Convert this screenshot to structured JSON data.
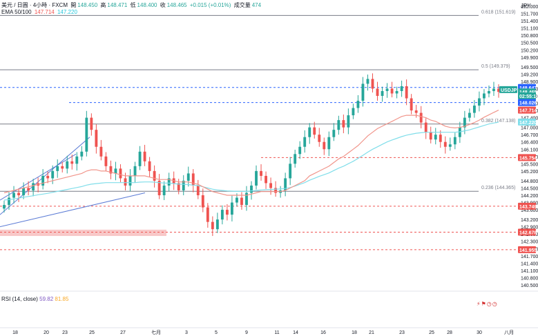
{
  "header": {
    "symbol": "美元 / 日圓 · 4小時 · FXCM",
    "open_label": "開",
    "open": "148.450",
    "high_label": "高",
    "high": "148.471",
    "low_label": "低",
    "low": "148.400",
    "close_label": "收",
    "close": "148.465",
    "change": "+0.015 (+0.01%)",
    "volume_label": "成交量",
    "volume": "474",
    "ema_label": "EMA 50/100",
    "ema50": "147.714",
    "ema100": "147.220"
  },
  "rsi": {
    "label": "RSI (14, close)",
    "value1": "59.82",
    "value2": "81.85"
  },
  "axis": {
    "unit": "JPY"
  },
  "icons": [
    "alert-icon",
    "flag-icon",
    "clock-icon",
    "clock-icon"
  ],
  "colors": {
    "up": "#26a69a",
    "down": "#ef5350",
    "ema50": "#f1948a",
    "ema100": "#80deea",
    "fib": "#787b86",
    "dashed_red": "#ef5350",
    "dashed_blue": "#2962ff",
    "trend": "#5b7bd5",
    "zone": "#f8c8c8"
  },
  "chart_data": {
    "type": "candlestick",
    "title": "USDJPY 4H",
    "ylim": [
      140.3,
      152.2
    ],
    "y_ticks": [
      "152.000",
      "151.700",
      "151.400",
      "151.100",
      "150.800",
      "150.500",
      "150.200",
      "149.900",
      "149.500",
      "149.200",
      "148.900",
      "148.600",
      "148.300",
      "148.000",
      "147.700",
      "147.400",
      "147.000",
      "146.700",
      "146.400",
      "146.100",
      "145.800",
      "145.500",
      "145.200",
      "144.800",
      "144.500",
      "144.200",
      "143.900",
      "143.600",
      "143.200",
      "142.900",
      "142.600",
      "142.300",
      "142.000",
      "141.700",
      "141.400",
      "141.100",
      "140.800",
      "140.500"
    ],
    "x_ticks": [
      "18",
      "20",
      "23",
      "25",
      "27",
      "七月",
      "3",
      "5",
      "9",
      "11",
      "14",
      "16",
      "18",
      "21",
      "23",
      "25",
      "28",
      "30",
      "八月"
    ],
    "fib_levels": [
      {
        "label": "0.618 (151.619)",
        "value": 151.619
      },
      {
        "label": "0.5 (149.379)",
        "value": 149.379
      },
      {
        "label": "0.382 (147.138)",
        "value": 147.138
      },
      {
        "label": "0.236 (144.365)",
        "value": 144.365
      }
    ],
    "red_dashed_levels": [
      145.754,
      143.749,
      142.678,
      141.955
    ],
    "blue_dashed_levels": [
      148.647,
      148.026
    ],
    "price_tags": [
      {
        "text": "USDJPY",
        "value": 148.56,
        "color": "#26a69a",
        "kind": "symbol"
      },
      {
        "text": "148.647",
        "value": 148.647,
        "color": "#2962ff"
      },
      {
        "text": "148.465",
        "value": 148.465,
        "color": "#26a69a"
      },
      {
        "text": "02:55:10",
        "value": 148.3,
        "color": "#26a69a"
      },
      {
        "text": "148.026",
        "value": 148.026,
        "color": "#2962ff"
      },
      {
        "text": "147.714",
        "value": 147.714,
        "color": "#ef5350"
      },
      {
        "text": "147.220",
        "value": 147.22,
        "color": "#80deea"
      },
      {
        "text": "145.754",
        "value": 145.754,
        "color": "#ef5350"
      },
      {
        "text": "143.749",
        "value": 143.749,
        "color": "#ef5350"
      },
      {
        "text": "142.678",
        "value": 142.678,
        "color": "#ef5350"
      },
      {
        "text": "141.955",
        "value": 141.955,
        "color": "#ef5350"
      }
    ],
    "closes": [
      143.8,
      144.1,
      144.3,
      144.2,
      144.5,
      144.4,
      144.7,
      144.6,
      145.0,
      144.9,
      145.2,
      145.4,
      145.3,
      145.6,
      145.5,
      145.8,
      146.0,
      147.4,
      146.9,
      146.2,
      145.8,
      145.4,
      145.1,
      145.3,
      144.9,
      144.6,
      145.0,
      145.4,
      146.0,
      145.6,
      145.2,
      144.8,
      144.2,
      144.6,
      144.9,
      144.7,
      144.4,
      144.8,
      145.1,
      144.6,
      144.2,
      143.7,
      143.1,
      142.8,
      143.2,
      143.6,
      143.4,
      143.9,
      144.1,
      143.8,
      144.3,
      144.6,
      145.2,
      145.0,
      144.7,
      144.5,
      144.3,
      144.4,
      144.9,
      145.5,
      145.9,
      146.2,
      146.6,
      147.0,
      146.7,
      146.4,
      146.1,
      146.6,
      146.9,
      147.3,
      147.0,
      147.5,
      147.8,
      148.1,
      148.8,
      149.0,
      148.6,
      148.3,
      148.5,
      148.6,
      148.4,
      148.5,
      148.7,
      148.2,
      147.7,
      147.6,
      147.2,
      146.8,
      146.5,
      146.7,
      146.4,
      146.2,
      146.3,
      146.6,
      147.0,
      147.4,
      147.6,
      147.9,
      148.2,
      148.4,
      148.5,
      148.6,
      148.465
    ],
    "ema50": [
      144.3,
      144.35,
      144.4,
      144.45,
      144.5,
      144.55,
      144.6,
      144.65,
      144.7,
      144.75,
      144.8,
      144.85,
      144.9,
      144.95,
      145.0,
      145.05,
      145.1,
      145.2,
      145.25,
      145.25,
      145.2,
      145.2,
      145.15,
      145.1,
      145.05,
      145.0,
      145.0,
      145.0,
      145.0,
      145.0,
      144.95,
      144.9,
      144.85,
      144.85,
      144.85,
      144.8,
      144.75,
      144.75,
      144.75,
      144.7,
      144.65,
      144.55,
      144.45,
      144.35,
      144.3,
      144.25,
      144.2,
      144.2,
      144.2,
      144.2,
      144.2,
      144.25,
      144.3,
      144.35,
      144.35,
      144.35,
      144.35,
      144.35,
      144.4,
      144.5,
      144.6,
      144.7,
      144.8,
      145.0,
      145.1,
      145.2,
      145.3,
      145.4,
      145.55,
      145.7,
      145.8,
      145.95,
      146.1,
      146.25,
      146.45,
      146.65,
      146.8,
      146.95,
      147.05,
      147.15,
      147.25,
      147.35,
      147.45,
      147.5,
      147.5,
      147.5,
      147.45,
      147.4,
      147.3,
      147.25,
      147.15,
      147.05,
      147.0,
      146.98,
      147.0,
      147.05,
      147.12,
      147.2,
      147.3,
      147.42,
      147.52,
      147.62,
      147.714
    ],
    "ema100": [
      144.0,
      144.02,
      144.05,
      144.08,
      144.12,
      144.15,
      144.18,
      144.22,
      144.25,
      144.28,
      144.32,
      144.36,
      144.4,
      144.44,
      144.48,
      144.52,
      144.56,
      144.62,
      144.66,
      144.68,
      144.7,
      144.72,
      144.72,
      144.72,
      144.72,
      144.72,
      144.72,
      144.72,
      144.74,
      144.75,
      144.75,
      144.74,
      144.72,
      144.7,
      144.7,
      144.68,
      144.66,
      144.65,
      144.64,
      144.62,
      144.6,
      144.55,
      144.5,
      144.45,
      144.42,
      144.4,
      144.38,
      144.37,
      144.36,
      144.36,
      144.36,
      144.38,
      144.4,
      144.42,
      144.43,
      144.44,
      144.45,
      144.46,
      144.48,
      144.52,
      144.58,
      144.65,
      144.72,
      144.82,
      144.9,
      144.98,
      145.05,
      145.12,
      145.22,
      145.32,
      145.4,
      145.5,
      145.6,
      145.72,
      145.85,
      145.98,
      146.1,
      146.2,
      146.3,
      146.4,
      146.48,
      146.55,
      146.62,
      146.68,
      146.72,
      146.76,
      146.78,
      146.8,
      146.8,
      146.8,
      146.8,
      146.8,
      146.8,
      146.8,
      146.82,
      146.86,
      146.9,
      146.96,
      147.02,
      147.08,
      147.14,
      147.18,
      147.22
    ]
  }
}
